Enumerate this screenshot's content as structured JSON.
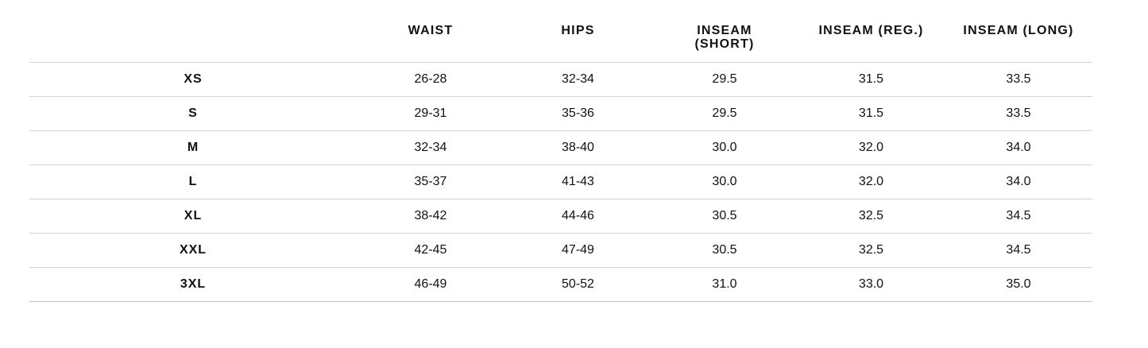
{
  "table": {
    "headers": [
      "WAIST",
      "HIPS",
      "INSEAM (SHORT)",
      "INSEAM (REG.)",
      "INSEAM (LONG)"
    ],
    "rows": [
      [
        "XS",
        "26-28",
        "32-34",
        "29.5",
        "31.5",
        "33.5"
      ],
      [
        "S",
        "29-31",
        "35-36",
        "29.5",
        "31.5",
        "33.5"
      ],
      [
        "M",
        "32-34",
        "38-40",
        "30.0",
        "32.0",
        "34.0"
      ],
      [
        "L",
        "35-37",
        "41-43",
        "30.0",
        "32.0",
        "34.0"
      ],
      [
        "XL",
        "38-42",
        "44-46",
        "30.5",
        "32.5",
        "34.5"
      ],
      [
        "XXL",
        "42-45",
        "47-49",
        "30.5",
        "32.5",
        "34.5"
      ],
      [
        "3XL",
        "46-49",
        "50-52",
        "31.0",
        "33.0",
        "35.0"
      ]
    ]
  }
}
